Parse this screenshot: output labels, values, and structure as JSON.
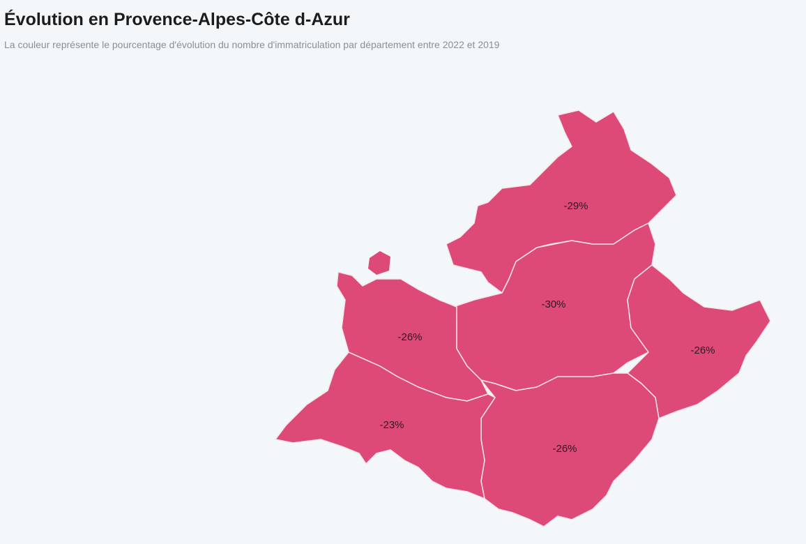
{
  "map": {
    "title": "Évolution en Provence-Alpes-Côte d-Azur",
    "subtitle": "La couleur représente le pourcentage d'évolution du nombre d'immatriculation par département entre 2022 et 2019",
    "color": "#de4a77",
    "regions": [
      {
        "value": -29,
        "value_label": "-29%"
      },
      {
        "value": -30,
        "value_label": "-30%"
      },
      {
        "value": -26,
        "value_label": "-26%"
      },
      {
        "value": -26,
        "value_label": "-26%"
      },
      {
        "value": -26,
        "value_label": "-26%"
      },
      {
        "value": -23,
        "value_label": "-23%"
      }
    ]
  }
}
